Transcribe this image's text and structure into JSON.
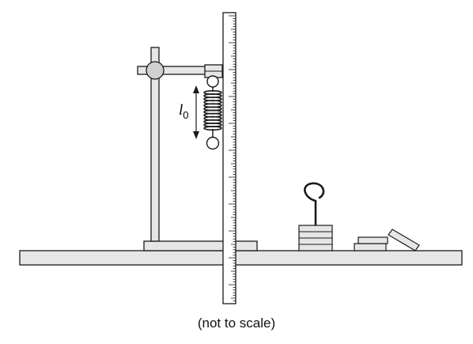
{
  "caption": "(not to scale)",
  "labels": {
    "length_symbol": "l",
    "length_subscript": "0"
  },
  "colors": {
    "stroke": "#1a1a1a",
    "fill_light": "#e6e6e6",
    "fill_mid": "#d0d0d0",
    "background": "#ffffff"
  }
}
